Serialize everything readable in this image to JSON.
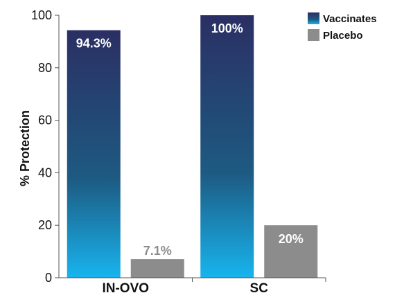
{
  "chart_data": {
    "type": "bar",
    "title": "",
    "xlabel": "",
    "ylabel": "% Protection",
    "ylim": [
      0,
      100
    ],
    "yticks": [
      0,
      20,
      40,
      60,
      80,
      100
    ],
    "categories": [
      "IN-OVO",
      "SC"
    ],
    "series": [
      {
        "name": "Vaccinates",
        "values": [
          94.3,
          100
        ],
        "labels": [
          "94.3%",
          "100%"
        ],
        "color_top": "#2b2f63",
        "color_mid": "#1d5a82",
        "color_bottom": "#18b4ee",
        "label_color": "#ffffff"
      },
      {
        "name": "Placebo",
        "values": [
          7.1,
          20
        ],
        "labels": [
          "7.1%",
          "20%"
        ],
        "color": "#8c8c8c",
        "label_colors": [
          "#8c8c8c",
          "#ffffff"
        ]
      }
    ],
    "legend": "top-right",
    "grid": false
  }
}
